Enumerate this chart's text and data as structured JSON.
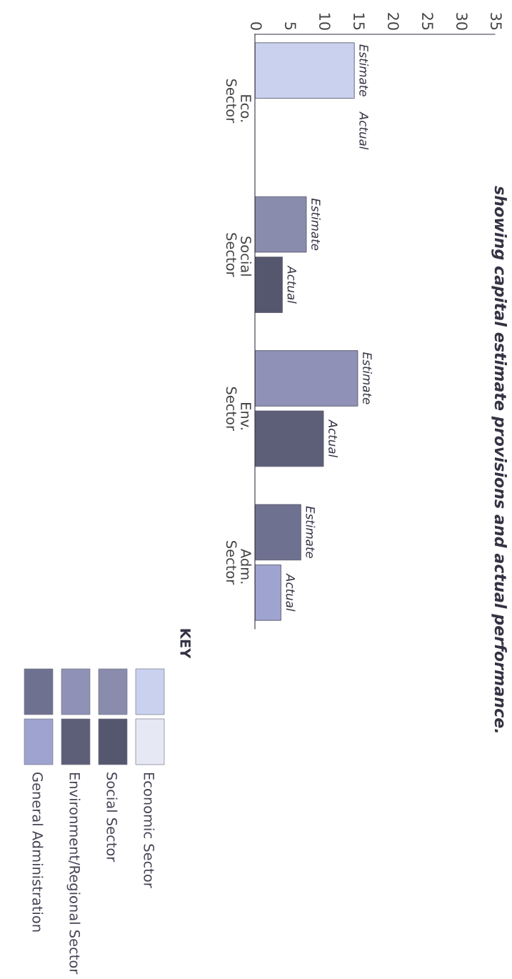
{
  "chart_data": {
    "type": "bar",
    "orientation": "horizontal",
    "title": "showing capital estimate provisions and actual performance.",
    "categories": [
      "Eco.\nSector",
      "Social\nSector",
      "Env.\nSector",
      "Adm.\nSector"
    ],
    "series": [
      {
        "name": "Estimate",
        "colors": [
          "#c9d1ef",
          "#8a8cae",
          "#8f91b6",
          "#6f7190"
        ],
        "values": [
          14.5,
          7.5,
          15,
          6.7
        ]
      },
      {
        "name": "Actual",
        "colors": [
          "#e6e9f4",
          "#55576f",
          "#5d5f78",
          "#9ea3cf"
        ],
        "values": [
          null,
          4,
          10,
          3.8
        ]
      }
    ],
    "legend_title": "KEY",
    "annotations": [
      "Economic Sector",
      "Social Sector",
      "Environment/Regional Sector",
      "General Administration"
    ],
    "xlim": [
      0,
      35
    ],
    "xticks": [
      0,
      5,
      10,
      15,
      20,
      25,
      30,
      35
    ],
    "grid": false
  }
}
